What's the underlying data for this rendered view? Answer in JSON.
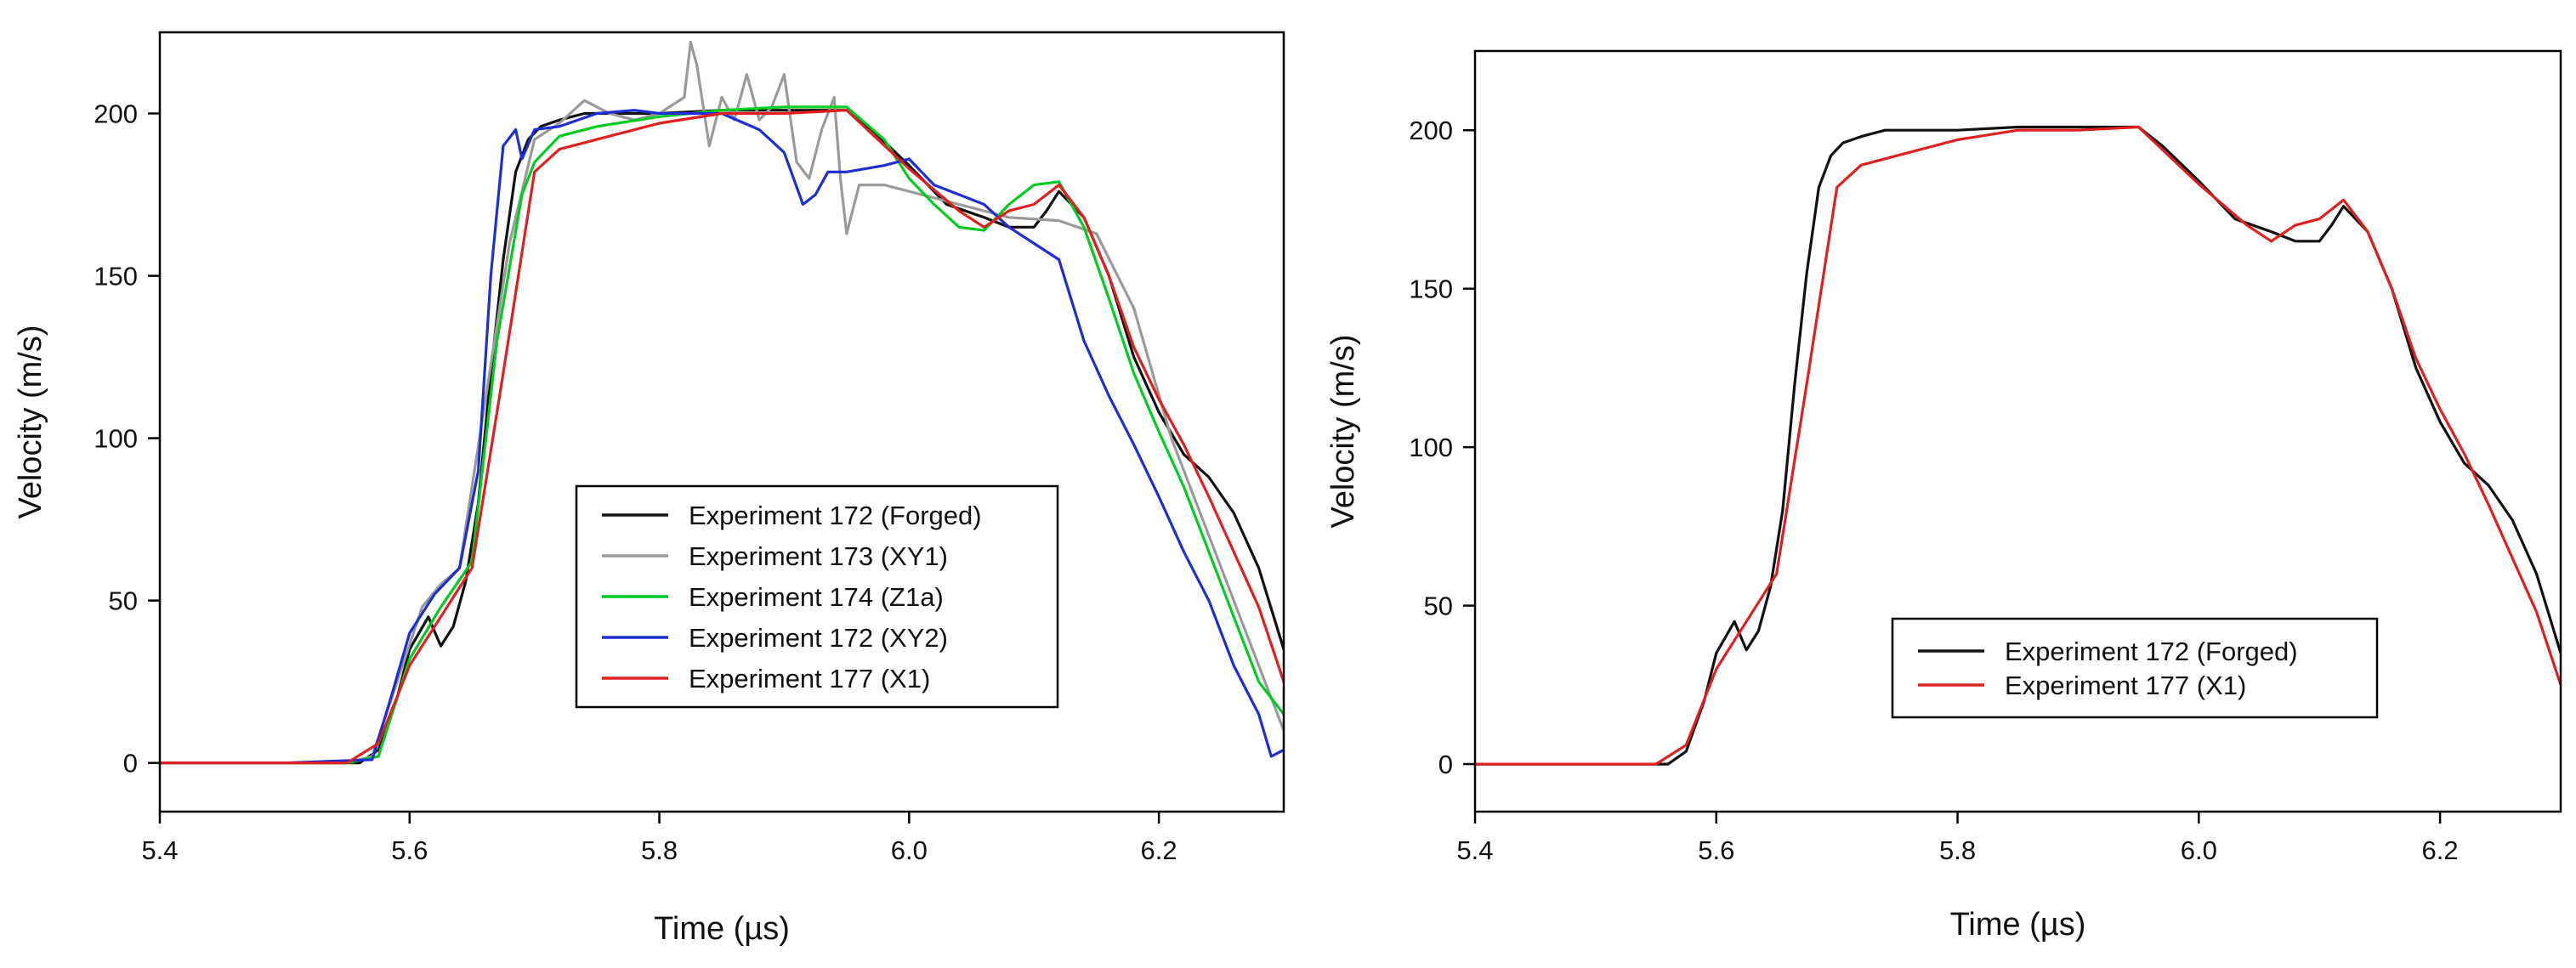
{
  "chart_data": [
    {
      "type": "line",
      "title": "",
      "xlabel": "Time (µs)",
      "ylabel": "Velocity (m/s)",
      "xlim": [
        5.4,
        6.3
      ],
      "ylim": [
        -15,
        225
      ],
      "xticks": [
        "5.4",
        "5.6",
        "5.8",
        "6.0",
        "6.2"
      ],
      "yticks": [
        "0",
        "50",
        "100",
        "150",
        "200"
      ],
      "legend_position": "lower-center",
      "series": [
        {
          "name": "Experiment 172 (Forged)",
          "color": "#111111",
          "x": [
            5.4,
            5.5,
            5.56,
            5.575,
            5.59,
            5.6,
            5.615,
            5.625,
            5.635,
            5.645,
            5.655,
            5.665,
            5.675,
            5.685,
            5.695,
            5.705,
            5.72,
            5.74,
            5.76,
            5.8,
            5.85,
            5.9,
            5.95,
            5.97,
            6.0,
            6.03,
            6.06,
            6.08,
            6.1,
            6.11,
            6.12,
            6.14,
            6.16,
            6.18,
            6.2,
            6.22,
            6.24,
            6.26,
            6.28,
            6.3
          ],
          "y": [
            0,
            0,
            0,
            4,
            20,
            35,
            45,
            36,
            42,
            56,
            80,
            120,
            155,
            182,
            192,
            196,
            198,
            200,
            200,
            200,
            201,
            201,
            201,
            195,
            184,
            172,
            168,
            165,
            165,
            170,
            176,
            168,
            150,
            125,
            108,
            95,
            88,
            77,
            60,
            35
          ]
        },
        {
          "name": "Experiment 173 (XY1)",
          "color": "#9a9a9a",
          "x": [
            5.4,
            5.55,
            5.57,
            5.59,
            5.61,
            5.625,
            5.64,
            5.66,
            5.68,
            5.7,
            5.72,
            5.74,
            5.76,
            5.78,
            5.8,
            5.82,
            5.825,
            5.83,
            5.84,
            5.85,
            5.86,
            5.87,
            5.88,
            5.89,
            5.9,
            5.91,
            5.92,
            5.93,
            5.94,
            5.945,
            5.95,
            5.96,
            5.98,
            6.0,
            6.04,
            6.08,
            6.12,
            6.15,
            6.18,
            6.21,
            6.24,
            6.27,
            6.3
          ],
          "y": [
            0,
            0,
            2,
            25,
            48,
            55,
            60,
            110,
            160,
            192,
            197,
            204,
            200,
            198,
            200,
            205,
            222,
            215,
            190,
            205,
            198,
            212,
            198,
            202,
            212,
            185,
            180,
            195,
            205,
            180,
            163,
            178,
            178,
            176,
            172,
            168,
            167,
            163,
            140,
            100,
            70,
            40,
            10
          ]
        },
        {
          "name": "Experiment 174 (Z1a)",
          "color": "#00cc22",
          "x": [
            5.4,
            5.55,
            5.575,
            5.6,
            5.625,
            5.65,
            5.67,
            5.69,
            5.7,
            5.72,
            5.75,
            5.8,
            5.85,
            5.9,
            5.95,
            5.98,
            6.0,
            6.02,
            6.04,
            6.06,
            6.08,
            6.1,
            6.12,
            6.14,
            6.16,
            6.18,
            6.2,
            6.22,
            6.24,
            6.26,
            6.28,
            6.3
          ],
          "y": [
            0,
            0,
            2,
            32,
            48,
            62,
            130,
            175,
            185,
            193,
            196,
            199,
            201,
            202,
            202,
            192,
            180,
            172,
            165,
            164,
            172,
            178,
            179,
            165,
            143,
            120,
            102,
            85,
            65,
            45,
            25,
            15
          ]
        },
        {
          "name": "Experiment 172 (XY2)",
          "color": "#1f2ed4",
          "x": [
            5.4,
            5.5,
            5.57,
            5.585,
            5.6,
            5.62,
            5.64,
            5.655,
            5.665,
            5.675,
            5.685,
            5.69,
            5.7,
            5.72,
            5.75,
            5.78,
            5.8,
            5.85,
            5.88,
            5.9,
            5.915,
            5.925,
            5.935,
            5.95,
            5.98,
            6.0,
            6.02,
            6.04,
            6.06,
            6.08,
            6.1,
            6.12,
            6.14,
            6.16,
            6.18,
            6.2,
            6.22,
            6.24,
            6.26,
            6.28,
            6.29,
            6.3
          ],
          "y": [
            0,
            0,
            1,
            20,
            40,
            52,
            60,
            90,
            150,
            190,
            195,
            186,
            195,
            196,
            200,
            201,
            200,
            200,
            195,
            188,
            172,
            175,
            182,
            182,
            184,
            186,
            178,
            175,
            172,
            165,
            160,
            155,
            130,
            113,
            98,
            82,
            65,
            50,
            30,
            15,
            2,
            4
          ]
        },
        {
          "name": "Experiment 177 (X1)",
          "color": "#e02020",
          "x": [
            5.4,
            5.55,
            5.575,
            5.6,
            5.625,
            5.65,
            5.675,
            5.7,
            5.72,
            5.75,
            5.8,
            5.85,
            5.9,
            5.95,
            6.0,
            6.04,
            6.06,
            6.08,
            6.1,
            6.12,
            6.14,
            6.16,
            6.18,
            6.2,
            6.22,
            6.24,
            6.26,
            6.28,
            6.3
          ],
          "y": [
            0,
            0,
            6,
            30,
            45,
            60,
            120,
            182,
            189,
            192,
            197,
            200,
            200,
            201,
            183,
            170,
            165,
            170,
            172,
            178,
            168,
            150,
            128,
            112,
            98,
            82,
            65,
            48,
            25
          ]
        }
      ]
    },
    {
      "type": "line",
      "title": "",
      "xlabel": "Time (µs)",
      "ylabel": "Velocity (m/s)",
      "xlim": [
        5.4,
        6.3
      ],
      "ylim": [
        -15,
        225
      ],
      "xticks": [
        "5.4",
        "5.6",
        "5.8",
        "6.0",
        "6.2"
      ],
      "yticks": [
        "0",
        "50",
        "100",
        "150",
        "200"
      ],
      "legend_position": "lower-center",
      "series": [
        {
          "name": "Experiment 172 (Forged)",
          "color": "#111111",
          "x": [
            5.4,
            5.5,
            5.56,
            5.575,
            5.59,
            5.6,
            5.615,
            5.625,
            5.635,
            5.645,
            5.655,
            5.665,
            5.675,
            5.685,
            5.695,
            5.705,
            5.72,
            5.74,
            5.76,
            5.8,
            5.85,
            5.9,
            5.95,
            5.97,
            6.0,
            6.03,
            6.06,
            6.08,
            6.1,
            6.11,
            6.12,
            6.14,
            6.16,
            6.18,
            6.2,
            6.22,
            6.24,
            6.26,
            6.28,
            6.3
          ],
          "y": [
            0,
            0,
            0,
            4,
            20,
            35,
            45,
            36,
            42,
            56,
            80,
            120,
            155,
            182,
            192,
            196,
            198,
            200,
            200,
            200,
            201,
            201,
            201,
            195,
            184,
            172,
            168,
            165,
            165,
            170,
            176,
            168,
            150,
            125,
            108,
            95,
            88,
            77,
            60,
            35
          ]
        },
        {
          "name": "Experiment 177 (X1)",
          "color": "#e02020",
          "x": [
            5.4,
            5.55,
            5.575,
            5.6,
            5.625,
            5.65,
            5.675,
            5.7,
            5.72,
            5.75,
            5.8,
            5.85,
            5.9,
            5.95,
            6.0,
            6.04,
            6.06,
            6.08,
            6.1,
            6.12,
            6.14,
            6.16,
            6.18,
            6.2,
            6.22,
            6.24,
            6.26,
            6.28,
            6.3
          ],
          "y": [
            0,
            0,
            6,
            30,
            45,
            60,
            120,
            182,
            189,
            192,
            197,
            200,
            200,
            201,
            183,
            170,
            165,
            170,
            172,
            178,
            168,
            150,
            128,
            112,
            98,
            82,
            65,
            48,
            25
          ]
        }
      ]
    }
  ]
}
